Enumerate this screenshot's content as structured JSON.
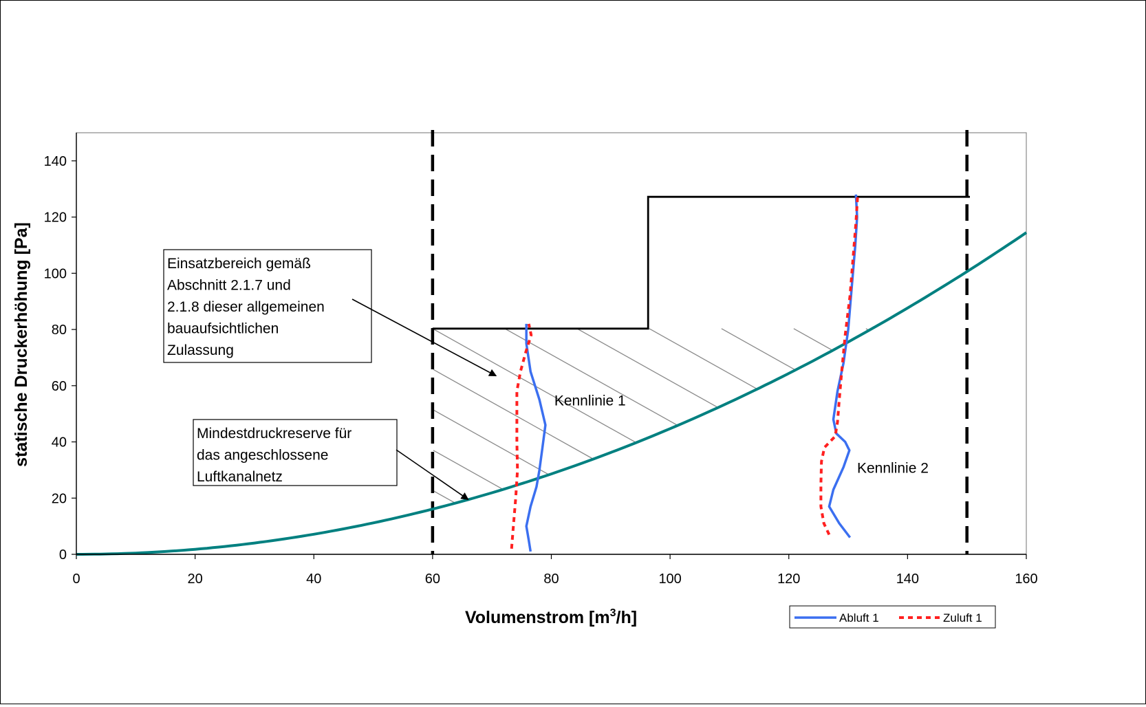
{
  "chart_data": {
    "type": "line",
    "xlabel": "Volumenstrom [m³/h]",
    "xlabel_main": "Volumenstrom [m",
    "xlabel_sup": "3",
    "xlabel_tail": "/h]",
    "ylabel": "statische Druckerhöhung [Pa]",
    "xlim": [
      0,
      160
    ],
    "ylim": [
      0,
      150
    ],
    "x_ticks": [
      "0",
      "20",
      "40",
      "60",
      "80",
      "100",
      "120",
      "140",
      "160"
    ],
    "y_ticks": [
      "0",
      "20",
      "40",
      "60",
      "80",
      "100",
      "120",
      "140"
    ],
    "grid": false,
    "legend_position": "bottom-right",
    "series": [
      {
        "name": "Abluft 1",
        "color": "#3b6ff0",
        "style": "solid",
        "segments": [
          [
            [
              76.5,
              1
            ],
            [
              76.2,
              5
            ],
            [
              75.8,
              10
            ],
            [
              76.5,
              17
            ],
            [
              77.5,
              24
            ],
            [
              78,
              30
            ],
            [
              78.5,
              38
            ],
            [
              79,
              46
            ],
            [
              78,
              55
            ],
            [
              76.5,
              65
            ],
            [
              75.8,
              75
            ],
            [
              75.8,
              82
            ]
          ],
          [
            [
              130.3,
              6
            ],
            [
              128.5,
              11
            ],
            [
              126.8,
              17
            ],
            [
              127.5,
              23
            ],
            [
              129.2,
              31
            ],
            [
              130.2,
              37
            ],
            [
              129.5,
              40
            ],
            [
              128,
              43
            ],
            [
              127.5,
              48
            ],
            [
              128.2,
              58
            ],
            [
              129.2,
              68
            ],
            [
              130,
              80
            ],
            [
              130.6,
              95
            ],
            [
              131.2,
              110
            ],
            [
              131.5,
              120
            ],
            [
              131.3,
              128
            ]
          ]
        ]
      },
      {
        "name": "Zuluft 1",
        "color": "#ff2020",
        "style": "dashed",
        "segments": [
          [
            [
              73.3,
              2
            ],
            [
              73.6,
              10
            ],
            [
              74,
              20
            ],
            [
              74.3,
              30
            ],
            [
              74.2,
              40
            ],
            [
              74.2,
              50
            ],
            [
              74.2,
              58
            ],
            [
              74.8,
              65
            ],
            [
              75.7,
              72
            ],
            [
              76.6,
              78
            ],
            [
              76.2,
              82
            ]
          ],
          [
            [
              126.8,
              7
            ],
            [
              125.9,
              11
            ],
            [
              125.4,
              17
            ],
            [
              125.4,
              25
            ],
            [
              125.5,
              33
            ],
            [
              126,
              38
            ],
            [
              127.8,
              42
            ],
            [
              128.2,
              47
            ],
            [
              128.5,
              55
            ],
            [
              128.9,
              65
            ],
            [
              129.5,
              78
            ],
            [
              130.3,
              92
            ],
            [
              130.8,
              105
            ],
            [
              131.3,
              118
            ],
            [
              131.6,
              128
            ]
          ]
        ]
      }
    ],
    "reserve_curve": {
      "color": "#008080",
      "coefficient": 0.004471,
      "x_end": 160
    },
    "vertical_limits": [
      60,
      150
    ],
    "usage_boundary": [
      [
        60,
        80.3
      ],
      [
        96.3,
        80.3
      ],
      [
        96.3,
        127.2
      ],
      [
        150.5,
        127.2
      ]
    ],
    "annotations": [
      {
        "id": "einsatzbereich",
        "lines": [
          "Einsatzbereich  gemäß",
          "Abschnitt 2.1.7 und",
          "2.1.8 dieser allgemeinen",
          "bauaufsichtlichen",
          "Zulassung"
        ],
        "arrow_target": [
          70.7,
          63.5
        ]
      },
      {
        "id": "mindestdruck",
        "lines": [
          "Mindestdruckreserve für",
          "das angeschlossene",
          "Luftkanalnetz"
        ],
        "arrow_target": [
          66,
          19.5
        ]
      },
      {
        "id": "kennlinie1",
        "text": "Kennlinie 1",
        "at": [
          80.5,
          53
        ]
      },
      {
        "id": "kennlinie2",
        "text": "Kennlinie 2",
        "at": [
          131.5,
          29
        ]
      }
    ]
  }
}
